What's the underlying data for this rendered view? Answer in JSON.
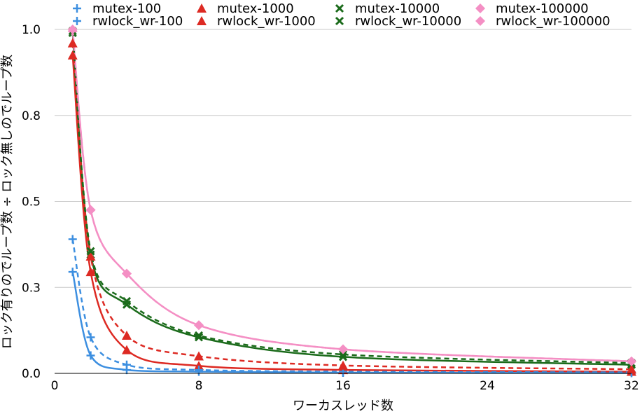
{
  "chart_data": {
    "type": "line",
    "title": "",
    "xlabel": "ワーカスレッド数",
    "ylabel": "ロック有りのでループ数 ÷ ロック無しのでループ数",
    "xlim": [
      0,
      32
    ],
    "ylim": [
      0,
      1
    ],
    "xticks": [
      "0",
      "8",
      "16",
      "24",
      "32"
    ],
    "xtick_values": [
      0,
      8,
      16,
      24,
      32
    ],
    "yticks": [
      "0.0",
      "0.3",
      "0.5",
      "0.8",
      "1.0"
    ],
    "ytick_values": [
      0,
      0.25,
      0.5,
      0.75,
      1.0
    ],
    "grid": "horizontal",
    "legend_position": "top",
    "x": [
      1,
      2,
      4,
      8,
      16,
      32
    ],
    "series": [
      {
        "name": "mutex-100",
        "color": "#3d8fe0",
        "marker": "plus",
        "dash": false,
        "values": [
          0.295,
          0.052,
          0.01,
          0.005,
          0.002,
          0.001
        ]
      },
      {
        "name": "mutex-1000",
        "color": "#dd2a23",
        "marker": "triangle",
        "dash": false,
        "values": [
          0.925,
          0.295,
          0.068,
          0.022,
          0.01,
          0.005
        ]
      },
      {
        "name": "mutex-10000",
        "color": "#1b6b1b",
        "marker": "x",
        "dash": false,
        "values": [
          0.99,
          0.345,
          0.2,
          0.105,
          0.048,
          0.025
        ]
      },
      {
        "name": "mutex-100000",
        "color": "#f48fc4",
        "marker": "diamond",
        "dash": false,
        "values": [
          0.995,
          0.475,
          0.29,
          0.14,
          0.07,
          0.035
        ]
      },
      {
        "name": "rwlock_wr-100",
        "color": "#3d8fe0",
        "marker": "plus",
        "dash": true,
        "values": [
          0.39,
          0.105,
          0.025,
          0.01,
          0.005,
          0.003
        ]
      },
      {
        "name": "rwlock_wr-1000",
        "color": "#dd2a23",
        "marker": "triangle",
        "dash": true,
        "values": [
          0.96,
          0.34,
          0.11,
          0.05,
          0.023,
          0.012
        ]
      },
      {
        "name": "rwlock_wr-10000",
        "color": "#1b6b1b",
        "marker": "x",
        "dash": true,
        "values": [
          0.995,
          0.355,
          0.21,
          0.11,
          0.055,
          0.03
        ]
      },
      {
        "name": "rwlock_wr-100000",
        "color": "#f48fc4",
        "marker": "diamond",
        "dash": true,
        "values": [
          1.0,
          0.475,
          0.29,
          0.14,
          0.07,
          0.035
        ]
      }
    ],
    "legend_order": [
      "mutex-100",
      "mutex-1000",
      "mutex-10000",
      "mutex-100000",
      "rwlock_wr-100",
      "rwlock_wr-1000",
      "rwlock_wr-10000",
      "rwlock_wr-100000"
    ]
  }
}
